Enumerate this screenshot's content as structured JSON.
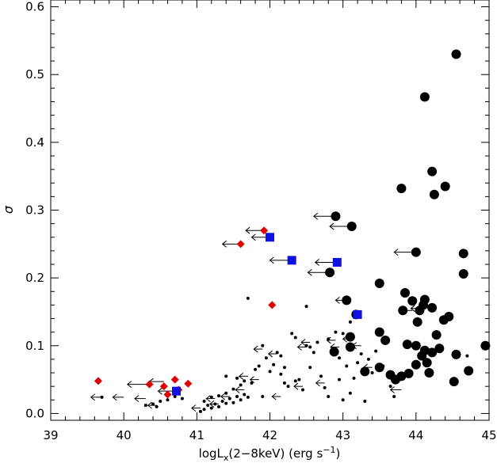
{
  "chart_data": {
    "type": "scatter",
    "title": "",
    "xlabel_main": "logL",
    "xlabel_sub": "x",
    "xlabel_rest": "(2−8keV) (erg s",
    "xlabel_exp": "−1",
    "xlabel_close": ")",
    "ylabel": "σ",
    "xlim": [
      39,
      45
    ],
    "ylim": [
      -0.01,
      0.61
    ],
    "x_ticks": [
      "39",
      "40",
      "41",
      "42",
      "43",
      "44",
      "45"
    ],
    "y_ticks": [
      "0.0",
      "0.1",
      "0.2",
      "0.3",
      "0.4",
      "0.5",
      "0.6"
    ],
    "grid": false,
    "colors": {
      "black": "#000000",
      "red": "#e00000",
      "blue": "#1010e0"
    },
    "series": [
      {
        "marker": "large-circle",
        "color": "black",
        "points": [
          [
            44.55,
            0.53
          ],
          [
            44.12,
            0.467
          ],
          [
            44.22,
            0.357
          ],
          [
            44.4,
            0.335
          ],
          [
            43.8,
            0.332
          ],
          [
            44.25,
            0.323
          ],
          [
            42.9,
            0.291
          ],
          [
            43.12,
            0.276
          ],
          [
            44.0,
            0.238
          ],
          [
            44.65,
            0.236
          ],
          [
            44.65,
            0.206
          ],
          [
            42.82,
            0.208
          ],
          [
            43.5,
            0.192
          ],
          [
            43.85,
            0.178
          ],
          [
            43.05,
            0.167
          ],
          [
            43.95,
            0.166
          ],
          [
            44.12,
            0.168
          ],
          [
            44.1,
            0.16
          ],
          [
            44.22,
            0.156
          ],
          [
            43.82,
            0.152
          ],
          [
            44.05,
            0.152
          ],
          [
            44.45,
            0.143
          ],
          [
            43.18,
            0.146
          ],
          [
            44.38,
            0.138
          ],
          [
            44.02,
            0.135
          ],
          [
            43.5,
            0.12
          ],
          [
            44.28,
            0.116
          ],
          [
            43.58,
            0.108
          ],
          [
            43.88,
            0.102
          ],
          [
            44.0,
            0.1
          ],
          [
            44.95,
            0.1
          ],
          [
            43.1,
            0.098
          ],
          [
            44.32,
            0.096
          ],
          [
            44.12,
            0.093
          ],
          [
            44.22,
            0.09
          ],
          [
            42.88,
            0.091
          ],
          [
            44.55,
            0.087
          ],
          [
            44.08,
            0.085
          ],
          [
            44.0,
            0.072
          ],
          [
            44.15,
            0.075
          ],
          [
            43.65,
            0.057
          ],
          [
            44.72,
            0.063
          ],
          [
            43.3,
            0.062
          ],
          [
            44.18,
            0.06
          ],
          [
            43.9,
            0.059
          ],
          [
            43.72,
            0.05
          ],
          [
            43.8,
            0.055
          ],
          [
            44.52,
            0.047
          ],
          [
            43.1,
            0.113
          ],
          [
            43.5,
            0.068
          ]
        ]
      },
      {
        "marker": "small-dot",
        "color": "black",
        "points": [
          [
            39.7,
            0.024
          ],
          [
            40.5,
            0.018
          ],
          [
            40.6,
            0.02
          ],
          [
            40.7,
            0.025
          ],
          [
            40.8,
            0.022
          ],
          [
            40.3,
            0.012
          ],
          [
            40.4,
            0.014
          ],
          [
            40.45,
            0.01
          ],
          [
            41.05,
            0.003
          ],
          [
            41.1,
            0.006
          ],
          [
            41.15,
            0.012
          ],
          [
            41.2,
            0.008
          ],
          [
            41.25,
            0.014
          ],
          [
            41.3,
            0.01
          ],
          [
            41.35,
            0.018
          ],
          [
            41.4,
            0.015
          ],
          [
            41.45,
            0.022
          ],
          [
            41.5,
            0.016
          ],
          [
            41.55,
            0.025
          ],
          [
            41.6,
            0.02
          ],
          [
            41.65,
            0.028
          ],
          [
            41.7,
            0.024
          ],
          [
            41.1,
            0.018
          ],
          [
            41.2,
            0.024
          ],
          [
            41.3,
            0.026
          ],
          [
            41.4,
            0.03
          ],
          [
            41.5,
            0.036
          ],
          [
            41.6,
            0.042
          ],
          [
            41.4,
            0.055
          ],
          [
            41.65,
            0.048
          ],
          [
            41.7,
            0.17
          ],
          [
            41.8,
            0.065
          ],
          [
            41.85,
            0.07
          ],
          [
            41.9,
            0.1
          ],
          [
            41.95,
            0.082
          ],
          [
            42.1,
            0.09
          ],
          [
            42.15,
            0.085
          ],
          [
            42.05,
            0.072
          ],
          [
            42.2,
            0.068
          ],
          [
            42.15,
            0.058
          ],
          [
            42.2,
            0.045
          ],
          [
            42.25,
            0.04
          ],
          [
            42.35,
            0.048
          ],
          [
            42.4,
            0.05
          ],
          [
            42.5,
            0.158
          ],
          [
            42.3,
            0.118
          ],
          [
            42.35,
            0.112
          ],
          [
            42.6,
            0.09
          ],
          [
            42.65,
            0.105
          ],
          [
            42.55,
            0.098
          ],
          [
            42.5,
            0.1
          ],
          [
            42.55,
            0.068
          ],
          [
            42.7,
            0.055
          ],
          [
            42.8,
            0.11
          ],
          [
            42.9,
            0.12
          ],
          [
            42.95,
            0.082
          ],
          [
            43.0,
            0.118
          ],
          [
            43.05,
            0.07
          ],
          [
            43.1,
            0.135
          ],
          [
            43.15,
            0.052
          ],
          [
            43.2,
            0.075
          ],
          [
            43.25,
            0.088
          ],
          [
            43.35,
            0.08
          ],
          [
            43.4,
            0.06
          ],
          [
            43.45,
            0.092
          ],
          [
            43.3,
            0.018
          ],
          [
            43.0,
            0.02
          ],
          [
            43.1,
            0.03
          ],
          [
            42.8,
            0.025
          ],
          [
            42.75,
            0.038
          ],
          [
            43.65,
            0.04
          ],
          [
            43.7,
            0.025
          ],
          [
            44.7,
            0.085
          ],
          [
            42.0,
            0.062
          ],
          [
            41.9,
            0.025
          ],
          [
            42.45,
            0.035
          ],
          [
            42.95,
            0.05
          ],
          [
            43.55,
            0.07
          ],
          [
            41.55,
            0.052
          ],
          [
            41.75,
            0.045
          ]
        ]
      },
      {
        "marker": "red-diamond",
        "color": "red",
        "points": [
          [
            39.65,
            0.048
          ],
          [
            40.35,
            0.043
          ],
          [
            40.55,
            0.04
          ],
          [
            40.6,
            0.028
          ],
          [
            40.7,
            0.05
          ],
          [
            40.75,
            0.035
          ],
          [
            40.88,
            0.044
          ],
          [
            41.6,
            0.25
          ],
          [
            41.92,
            0.27
          ],
          [
            42.03,
            0.16
          ]
        ]
      },
      {
        "marker": "blue-square",
        "color": "blue",
        "points": [
          [
            40.72,
            0.033
          ],
          [
            42.0,
            0.26
          ],
          [
            42.3,
            0.226
          ],
          [
            42.92,
            0.223
          ],
          [
            43.2,
            0.146
          ]
        ]
      }
    ],
    "upper_limits": [
      {
        "x": 42.9,
        "y": 0.291,
        "len": 0.3
      },
      {
        "x": 43.12,
        "y": 0.276,
        "len": 0.3
      },
      {
        "x": 44.0,
        "y": 0.238,
        "len": 0.3
      },
      {
        "x": 42.82,
        "y": 0.208,
        "len": 0.3
      },
      {
        "x": 43.05,
        "y": 0.167,
        "len": 0.15
      },
      {
        "x": 43.95,
        "y": 0.152,
        "len": 0.15
      },
      {
        "x": 41.6,
        "y": 0.25,
        "len": 0.25
      },
      {
        "x": 41.92,
        "y": 0.27,
        "len": 0.25
      },
      {
        "x": 42.0,
        "y": 0.26,
        "len": 0.25
      },
      {
        "x": 42.3,
        "y": 0.226,
        "len": 0.3
      },
      {
        "x": 42.92,
        "y": 0.223,
        "len": 0.3
      },
      {
        "x": 40.35,
        "y": 0.043,
        "len": 0.3
      },
      {
        "x": 40.72,
        "y": 0.033,
        "len": 0.25
      },
      {
        "x": 40.55,
        "y": 0.047,
        "len": 0.2
      },
      {
        "x": 39.7,
        "y": 0.024,
        "len": 0.15
      },
      {
        "x": 40.0,
        "y": 0.024,
        "len": 0.15
      },
      {
        "x": 40.3,
        "y": 0.022,
        "len": 0.15
      },
      {
        "x": 40.45,
        "y": 0.012,
        "len": 0.12
      },
      {
        "x": 41.05,
        "y": 0.008,
        "len": 0.12
      },
      {
        "x": 41.25,
        "y": 0.022,
        "len": 0.12
      },
      {
        "x": 41.45,
        "y": 0.025,
        "len": 0.12
      },
      {
        "x": 41.3,
        "y": 0.014,
        "len": 0.12
      },
      {
        "x": 41.65,
        "y": 0.035,
        "len": 0.12
      },
      {
        "x": 41.7,
        "y": 0.055,
        "len": 0.12
      },
      {
        "x": 41.9,
        "y": 0.095,
        "len": 0.12
      },
      {
        "x": 42.1,
        "y": 0.088,
        "len": 0.12
      },
      {
        "x": 42.15,
        "y": 0.025,
        "len": 0.12
      },
      {
        "x": 42.5,
        "y": 0.098,
        "len": 0.12
      },
      {
        "x": 42.55,
        "y": 0.105,
        "len": 0.12
      },
      {
        "x": 42.9,
        "y": 0.108,
        "len": 0.12
      },
      {
        "x": 42.95,
        "y": 0.098,
        "len": 0.12
      },
      {
        "x": 43.15,
        "y": 0.11,
        "len": 0.15
      },
      {
        "x": 43.25,
        "y": 0.1,
        "len": 0.12
      },
      {
        "x": 43.4,
        "y": 0.068,
        "len": 0.12
      },
      {
        "x": 43.8,
        "y": 0.035,
        "len": 0.15
      },
      {
        "x": 44.05,
        "y": 0.155,
        "len": 0.12
      },
      {
        "x": 42.45,
        "y": 0.04,
        "len": 0.12
      },
      {
        "x": 41.85,
        "y": 0.05,
        "len": 0.12
      },
      {
        "x": 42.75,
        "y": 0.045,
        "len": 0.12
      }
    ]
  }
}
